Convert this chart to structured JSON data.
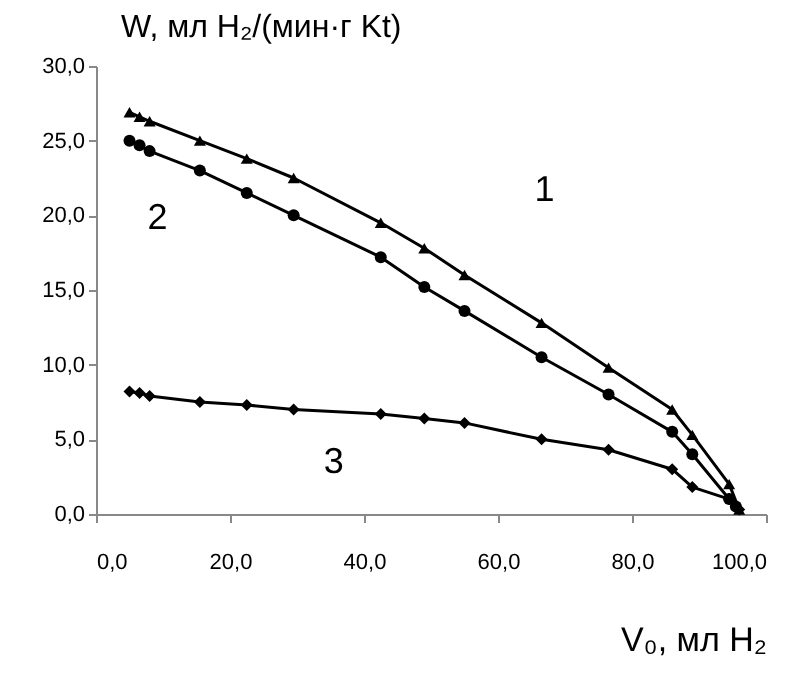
{
  "chart_data": {
    "type": "line",
    "xlabel": "V₀, мл H₂",
    "ylabel": "W, мл H₂/(мин·г Kt)",
    "series": [
      {
        "name": "1",
        "color": "#000000",
        "marker": "triangle",
        "x": [
          5,
          6.5,
          8,
          15.5,
          22.5,
          29.5,
          42.5,
          49,
          55,
          66.5,
          76.5,
          86,
          89,
          94.5,
          96
        ],
        "values": [
          26.9,
          26.6,
          26.3,
          25.0,
          23.8,
          22.5,
          19.5,
          17.8,
          16.0,
          12.8,
          9.8,
          7.0,
          5.3,
          2.0,
          0.3
        ]
      },
      {
        "name": "2",
        "color": "#000000",
        "marker": "circle",
        "x": [
          5,
          6.5,
          8,
          15.5,
          22.5,
          29.5,
          42.5,
          49,
          55,
          66.5,
          76.5,
          86,
          89,
          94.5,
          95.5
        ],
        "values": [
          25.0,
          24.7,
          24.3,
          23.0,
          21.5,
          20.0,
          17.2,
          15.2,
          13.6,
          10.5,
          8.0,
          5.5,
          4.0,
          1.0,
          0.5
        ]
      },
      {
        "name": "3",
        "color": "#000000",
        "marker": "diamond",
        "x": [
          5,
          6.5,
          8,
          15.5,
          22.5,
          29.5,
          42.5,
          49,
          55,
          66.5,
          76.5,
          86,
          89,
          94.5,
          96
        ],
        "values": [
          8.2,
          8.1,
          7.9,
          7.5,
          7.3,
          7.0,
          6.7,
          6.4,
          6.1,
          5.0,
          4.3,
          3.0,
          1.8,
          1.0,
          0.3
        ]
      }
    ],
    "xlim": [
      0,
      100
    ],
    "xticks": [
      {
        "value": 0,
        "label": "0,0"
      },
      {
        "value": 20,
        "label": "20,0"
      },
      {
        "value": 40,
        "label": "40,0"
      },
      {
        "value": 60,
        "label": "60,0"
      },
      {
        "value": 80,
        "label": "80,0"
      },
      {
        "value": 100,
        "label": "100,0"
      }
    ],
    "ylim": [
      0,
      30
    ],
    "yticks": [
      {
        "value": 0,
        "label": "0,0"
      },
      {
        "value": 5,
        "label": "5,0"
      },
      {
        "value": 10,
        "label": "10,0"
      },
      {
        "value": 15,
        "label": "15,0"
      },
      {
        "value": 20,
        "label": "20,0"
      },
      {
        "value": 25,
        "label": "25,0"
      },
      {
        "value": 30,
        "label": "30,0"
      }
    ],
    "grid": false,
    "legend": false,
    "line_style": "solid"
  }
}
